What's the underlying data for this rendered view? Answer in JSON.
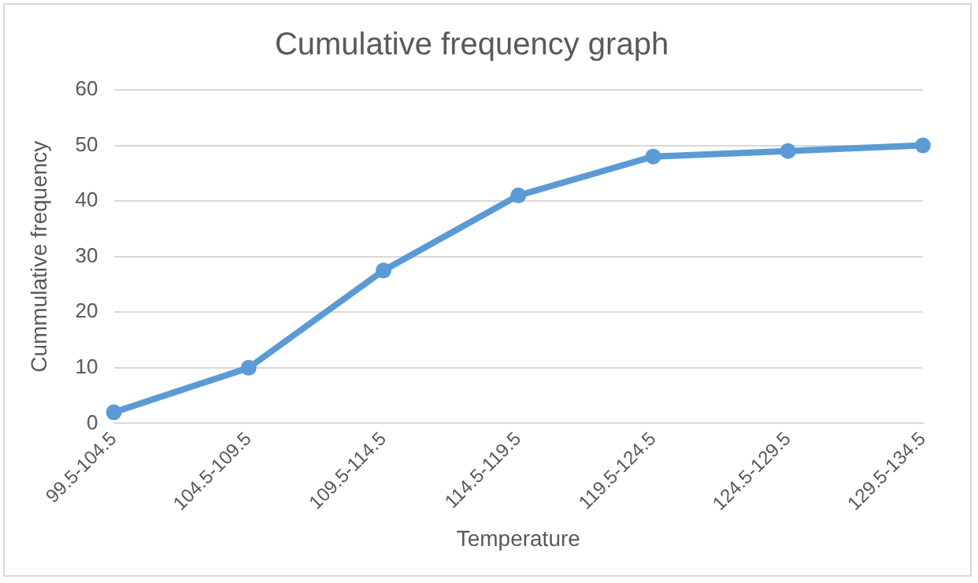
{
  "chart_data": {
    "type": "line",
    "title": "Cumulative frequency graph",
    "xlabel": "Temperature",
    "ylabel": "Cummulative frequency",
    "categories": [
      "99.5-104.5",
      "104.5-109.5",
      "109.5-114.5",
      "114.5-119.5",
      "119.5-124.5",
      "124.5-129.5",
      "129.5-134.5"
    ],
    "series": [
      {
        "color": "#5b9bd5",
        "values": [
          2,
          10,
          27.5,
          41,
          48,
          49,
          50
        ]
      }
    ],
    "ylim": [
      0,
      60
    ],
    "yticks": [
      0,
      10,
      20,
      30,
      40,
      50,
      60
    ],
    "grid": "y",
    "legend": false,
    "marker": "circle",
    "line_style": "solid"
  }
}
